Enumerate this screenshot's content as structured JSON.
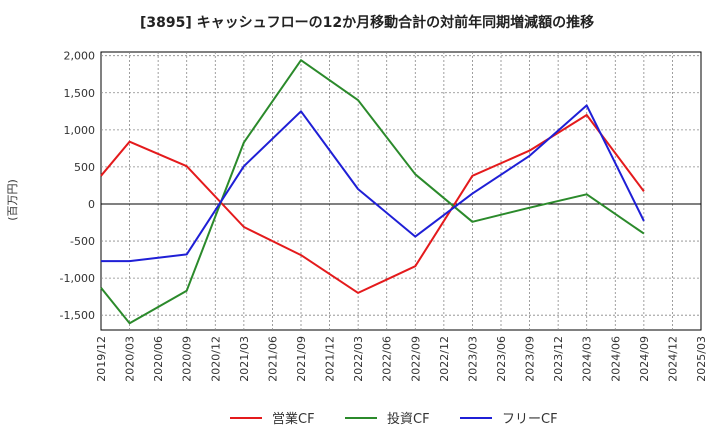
{
  "chart_data": {
    "type": "line",
    "title": "[3895]  キャッシュフローの12か月移動合計の対前年同期増減額の推移",
    "ylabel": "(百万円)",
    "xlabel": "",
    "ylim": [
      -1700,
      2050
    ],
    "y_ticks": [
      2000,
      1500,
      1000,
      500,
      0,
      -500,
      -1000,
      -1500
    ],
    "y_tick_labels": [
      "2,000",
      "1,500",
      "1,000",
      "500",
      "0",
      "-500",
      "-1,000",
      "-1,500"
    ],
    "categories": [
      "2019/12",
      "2020/03",
      "2020/06",
      "2020/09",
      "2020/12",
      "2021/03",
      "2021/06",
      "2021/09",
      "2021/12",
      "2022/03",
      "2022/06",
      "2022/09",
      "2022/12",
      "2023/03",
      "2023/06",
      "2023/09",
      "2023/12",
      "2024/03",
      "2024/06",
      "2024/09",
      "2024/12",
      "2025/03"
    ],
    "grid": true,
    "legend_position": "bottom",
    "series": [
      {
        "name": "営業CF",
        "color": "#e41a1c",
        "points": [
          [
            "2019/12",
            380
          ],
          [
            "2020/03",
            840
          ],
          [
            "2020/09",
            510
          ],
          [
            "2021/03",
            -310
          ],
          [
            "2021/09",
            -690
          ],
          [
            "2022/03",
            -1200
          ],
          [
            "2022/09",
            -840
          ],
          [
            "2023/03",
            380
          ],
          [
            "2023/09",
            720
          ],
          [
            "2024/03",
            1200
          ],
          [
            "2024/09",
            170
          ]
        ]
      },
      {
        "name": "投資CF",
        "color": "#2b8a2b",
        "points": [
          [
            "2019/12",
            -1130
          ],
          [
            "2020/03",
            -1610
          ],
          [
            "2020/09",
            -1170
          ],
          [
            "2021/03",
            830
          ],
          [
            "2021/09",
            1940
          ],
          [
            "2022/03",
            1400
          ],
          [
            "2022/09",
            400
          ],
          [
            "2023/03",
            -240
          ],
          [
            "2023/09",
            -50
          ],
          [
            "2024/03",
            130
          ],
          [
            "2024/09",
            -400
          ]
        ]
      },
      {
        "name": "フリーCF",
        "color": "#1f1fd6",
        "points": [
          [
            "2019/12",
            -770
          ],
          [
            "2020/03",
            -770
          ],
          [
            "2020/09",
            -680
          ],
          [
            "2021/03",
            510
          ],
          [
            "2021/09",
            1250
          ],
          [
            "2022/03",
            200
          ],
          [
            "2022/09",
            -440
          ],
          [
            "2023/03",
            140
          ],
          [
            "2023/09",
            650
          ],
          [
            "2024/03",
            1330
          ],
          [
            "2024/09",
            -230
          ]
        ]
      }
    ]
  }
}
